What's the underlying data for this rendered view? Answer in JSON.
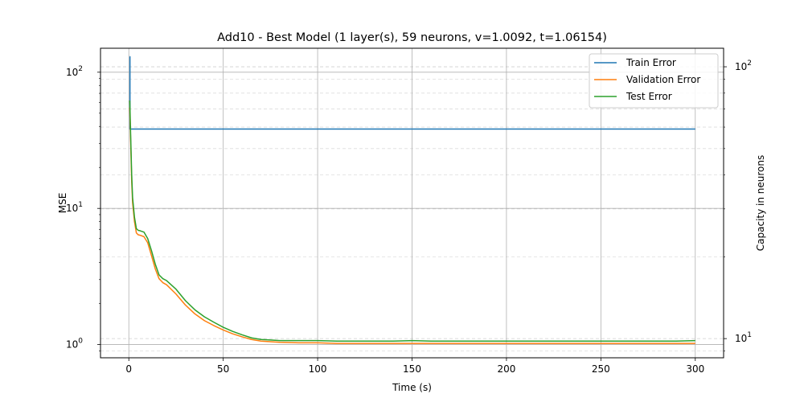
{
  "chart_data": {
    "type": "line",
    "title": "Add10 - Best Model (1 layer(s), 59 neurons, v=1.0092, t=1.06154)",
    "xlabel": "Time (s)",
    "ylabel": "MSE",
    "y2label": "Capacity in neurons",
    "x_ticks": [
      0,
      50,
      100,
      150,
      200,
      250,
      300
    ],
    "x_tick_labels": [
      "0",
      "50",
      "100",
      "150",
      "200",
      "250",
      "300"
    ],
    "xlim": [
      -15,
      315
    ],
    "ylim": [
      0.8,
      150
    ],
    "yscale": "log",
    "y_tick_labels": [
      {
        "value": 1,
        "base": "10",
        "exp": "0"
      },
      {
        "value": 10,
        "base": "10",
        "exp": "1"
      },
      {
        "value": 100,
        "base": "10",
        "exp": "2"
      }
    ],
    "y2lim": [
      8.5,
      117
    ],
    "y2scale": "log",
    "y2_tick_labels": [
      {
        "value": 10,
        "base": "10",
        "exp": "1"
      },
      {
        "value": 100,
        "base": "10",
        "exp": "2"
      }
    ],
    "grid": true,
    "legend_position": "top-right",
    "series": [
      {
        "name": "Train Error",
        "axis": "right",
        "color": "#1f77b4",
        "x": [
          0.5,
          0.6,
          0.6,
          0.8,
          0.8,
          300
        ],
        "y": [
          109,
          109,
          59,
          59,
          59,
          59
        ]
      },
      {
        "name": "Validation Error",
        "axis": "left",
        "color": "#ff7f0e",
        "x": [
          0.5,
          1,
          1.5,
          2,
          3,
          4,
          5,
          6,
          8,
          10,
          12,
          14,
          16,
          18,
          20,
          25,
          30,
          35,
          40,
          45,
          50,
          55,
          60,
          65,
          70,
          75,
          80,
          90,
          100,
          110,
          120,
          130,
          140,
          150,
          160,
          170,
          180,
          190,
          200,
          210,
          220,
          230,
          240,
          250,
          260,
          270,
          280,
          290,
          300
        ],
        "y": [
          55,
          30,
          16,
          11,
          8.0,
          6.6,
          6.4,
          6.35,
          6.2,
          5.6,
          4.5,
          3.6,
          3.05,
          2.85,
          2.75,
          2.35,
          1.95,
          1.68,
          1.5,
          1.38,
          1.28,
          1.2,
          1.14,
          1.09,
          1.06,
          1.05,
          1.04,
          1.03,
          1.03,
          1.02,
          1.02,
          1.02,
          1.02,
          1.02,
          1.02,
          1.02,
          1.02,
          1.02,
          1.02,
          1.02,
          1.02,
          1.02,
          1.02,
          1.02,
          1.02,
          1.02,
          1.02,
          1.02,
          1.02
        ]
      },
      {
        "name": "Test Error",
        "axis": "left",
        "color": "#2ca02c",
        "x": [
          0.5,
          1,
          1.5,
          2,
          3,
          4,
          5,
          6,
          8,
          10,
          12,
          14,
          16,
          18,
          20,
          25,
          30,
          35,
          40,
          45,
          50,
          55,
          60,
          65,
          70,
          75,
          80,
          90,
          100,
          110,
          120,
          130,
          140,
          150,
          160,
          170,
          180,
          190,
          200,
          210,
          220,
          230,
          240,
          250,
          260,
          270,
          280,
          290,
          300
        ],
        "y": [
          62,
          33,
          18,
          12,
          8.6,
          7.1,
          6.9,
          6.85,
          6.7,
          6.0,
          4.9,
          3.9,
          3.25,
          3.05,
          2.95,
          2.55,
          2.1,
          1.8,
          1.6,
          1.46,
          1.34,
          1.25,
          1.18,
          1.12,
          1.09,
          1.08,
          1.07,
          1.07,
          1.07,
          1.06,
          1.06,
          1.06,
          1.06,
          1.07,
          1.06,
          1.06,
          1.06,
          1.06,
          1.06,
          1.06,
          1.06,
          1.06,
          1.06,
          1.06,
          1.06,
          1.06,
          1.06,
          1.06,
          1.07
        ]
      }
    ]
  }
}
